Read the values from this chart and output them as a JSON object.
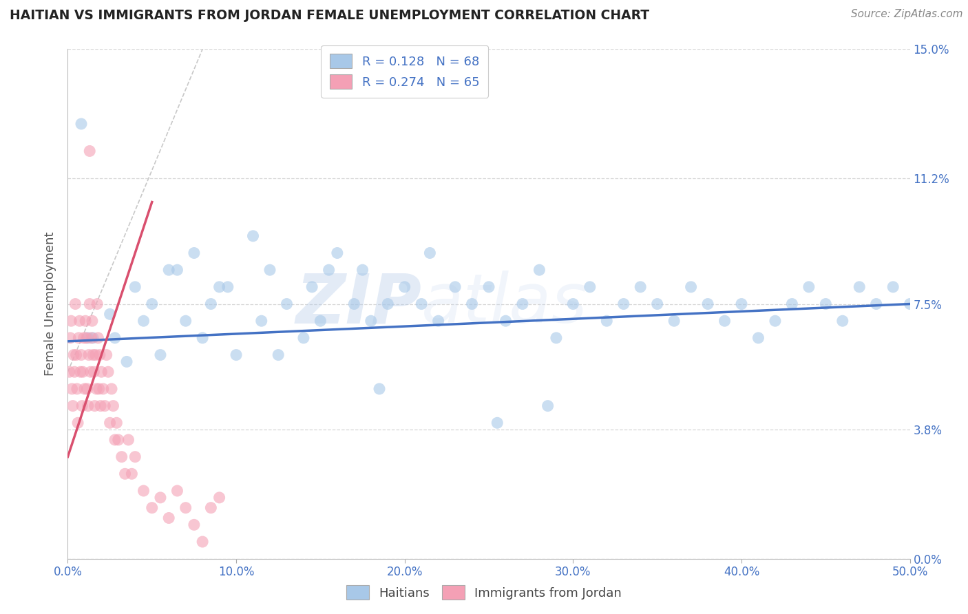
{
  "title": "HAITIAN VS IMMIGRANTS FROM JORDAN FEMALE UNEMPLOYMENT CORRELATION CHART",
  "source": "Source: ZipAtlas.com",
  "ylabel": "Female Unemployment",
  "legend_labels": [
    "Haitians",
    "Immigrants from Jordan"
  ],
  "series1_color": "#a8c8e8",
  "series2_color": "#f4a0b5",
  "line1_color": "#4472c4",
  "line2_color": "#d94f6e",
  "legend_r1": "R = 0.128",
  "legend_n1": "N = 68",
  "legend_r2": "R = 0.274",
  "legend_n2": "N = 65",
  "xmin": 0.0,
  "xmax": 50.0,
  "ymin": 0.0,
  "ymax": 15.0,
  "yticks": [
    0.0,
    3.8,
    7.5,
    11.2,
    15.0
  ],
  "xticks": [
    0.0,
    10.0,
    20.0,
    30.0,
    40.0,
    50.0
  ],
  "background_color": "#ffffff",
  "title_color": "#222222",
  "axis_label_color": "#4472c4",
  "grid_color": "#cccccc",
  "blue_line_y0": 6.4,
  "blue_line_y1": 7.5,
  "pink_line_x0": 0.0,
  "pink_line_y0": 3.0,
  "pink_line_x1": 5.0,
  "pink_line_y1": 10.5,
  "haitians_x": [
    1.5,
    2.5,
    3.5,
    4.0,
    5.0,
    5.5,
    6.0,
    7.0,
    7.5,
    8.0,
    8.5,
    9.0,
    10.0,
    11.0,
    11.5,
    12.0,
    13.0,
    14.0,
    14.5,
    15.0,
    16.0,
    17.0,
    17.5,
    18.0,
    19.0,
    20.0,
    21.0,
    22.0,
    23.0,
    24.0,
    25.0,
    26.0,
    27.0,
    28.0,
    29.0,
    30.0,
    31.0,
    32.0,
    33.0,
    34.0,
    35.0,
    36.0,
    37.0,
    38.0,
    39.0,
    40.0,
    41.0,
    42.0,
    43.0,
    44.0,
    45.0,
    46.0,
    47.0,
    48.0,
    49.0,
    50.0,
    28.5,
    25.5,
    21.5,
    18.5,
    15.5,
    12.5,
    9.5,
    6.5,
    4.5,
    2.8,
    1.2,
    0.8
  ],
  "haitians_y": [
    6.5,
    7.2,
    5.8,
    8.0,
    7.5,
    6.0,
    8.5,
    7.0,
    9.0,
    6.5,
    7.5,
    8.0,
    6.0,
    9.5,
    7.0,
    8.5,
    7.5,
    6.5,
    8.0,
    7.0,
    9.0,
    7.5,
    8.5,
    7.0,
    7.5,
    8.0,
    7.5,
    7.0,
    8.0,
    7.5,
    8.0,
    7.0,
    7.5,
    8.5,
    6.5,
    7.5,
    8.0,
    7.0,
    7.5,
    8.0,
    7.5,
    7.0,
    8.0,
    7.5,
    7.0,
    7.5,
    6.5,
    7.0,
    7.5,
    8.0,
    7.5,
    7.0,
    8.0,
    7.5,
    8.0,
    7.5,
    4.5,
    4.0,
    9.0,
    5.0,
    8.5,
    6.0,
    8.0,
    8.5,
    7.0,
    6.5,
    6.5,
    12.8
  ],
  "jordan_x": [
    0.1,
    0.15,
    0.2,
    0.25,
    0.3,
    0.35,
    0.4,
    0.45,
    0.5,
    0.55,
    0.6,
    0.65,
    0.7,
    0.75,
    0.8,
    0.85,
    0.9,
    0.95,
    1.0,
    1.05,
    1.1,
    1.15,
    1.2,
    1.25,
    1.3,
    1.35,
    1.4,
    1.45,
    1.5,
    1.55,
    1.6,
    1.65,
    1.7,
    1.75,
    1.8,
    1.85,
    1.9,
    1.95,
    2.0,
    2.1,
    2.2,
    2.3,
    2.4,
    2.5,
    2.6,
    2.7,
    2.8,
    2.9,
    3.0,
    3.2,
    3.4,
    3.6,
    3.8,
    4.0,
    4.5,
    5.0,
    5.5,
    6.0,
    6.5,
    7.0,
    7.5,
    8.0,
    8.5,
    9.0,
    1.3
  ],
  "jordan_y": [
    5.5,
    6.5,
    7.0,
    5.0,
    4.5,
    6.0,
    5.5,
    7.5,
    6.0,
    5.0,
    4.0,
    6.5,
    7.0,
    5.5,
    6.0,
    4.5,
    5.5,
    6.5,
    5.0,
    7.0,
    6.5,
    5.0,
    4.5,
    6.0,
    7.5,
    5.5,
    6.5,
    7.0,
    6.0,
    5.5,
    4.5,
    6.0,
    5.0,
    7.5,
    6.5,
    5.0,
    6.0,
    4.5,
    5.5,
    5.0,
    4.5,
    6.0,
    5.5,
    4.0,
    5.0,
    4.5,
    3.5,
    4.0,
    3.5,
    3.0,
    2.5,
    3.5,
    2.5,
    3.0,
    2.0,
    1.5,
    1.8,
    1.2,
    2.0,
    1.5,
    1.0,
    0.5,
    1.5,
    1.8,
    12.0
  ]
}
